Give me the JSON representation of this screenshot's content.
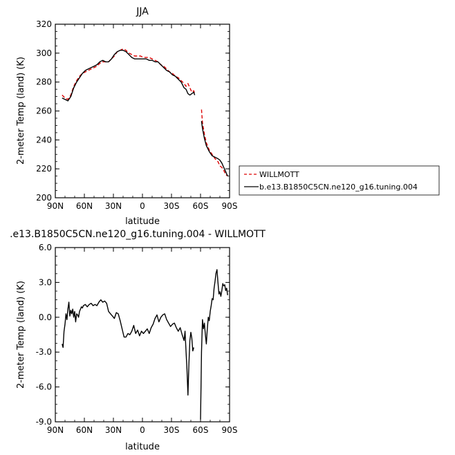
{
  "chart_data": [
    {
      "type": "line",
      "title": "JJA",
      "xlabel": "latitude",
      "ylabel": "2-meter Temp (land) (K)",
      "xlim": [
        90,
        -90
      ],
      "ylim": [
        200,
        320
      ],
      "xticks": [
        90,
        60,
        30,
        0,
        -30,
        -60,
        -90
      ],
      "xtick_labels": [
        "90N",
        "60N",
        "30N",
        "0",
        "30S",
        "60S",
        "90S"
      ],
      "yticks": [
        200,
        220,
        240,
        260,
        280,
        300,
        320
      ],
      "ytick_labels": [
        "200",
        "220",
        "240",
        "260",
        "280",
        "300",
        "320"
      ],
      "legend": "right",
      "series": [
        {
          "name": "WILLMOTT",
          "color": "#dd0000",
          "dash": "dashed",
          "segments": [
            [
              [
                83,
                271
              ],
              [
                80,
                269
              ],
              [
                77,
                268
              ],
              [
                74,
                271
              ],
              [
                71,
                277
              ],
              [
                68,
                281
              ],
              [
                65,
                284
              ],
              [
                62,
                286
              ],
              [
                59,
                287
              ],
              [
                56,
                288
              ],
              [
                53,
                289
              ],
              [
                50,
                290
              ],
              [
                47,
                291
              ],
              [
                44,
                293
              ],
              [
                41,
                294
              ],
              [
                38,
                294
              ],
              [
                35,
                294
              ],
              [
                32,
                296
              ],
              [
                29,
                298
              ],
              [
                26,
                301
              ],
              [
                23,
                302
              ],
              [
                20,
                303
              ],
              [
                17,
                302
              ],
              [
                14,
                300
              ],
              [
                11,
                299
              ],
              [
                8,
                298
              ],
              [
                5,
                298
              ],
              [
                2,
                298
              ],
              [
                -1,
                297
              ],
              [
                -4,
                297
              ],
              [
                -7,
                297
              ],
              [
                -10,
                296
              ],
              [
                -13,
                295
              ],
              [
                -16,
                294
              ],
              [
                -19,
                292
              ],
              [
                -22,
                291
              ],
              [
                -25,
                289
              ],
              [
                -28,
                287
              ],
              [
                -31,
                286
              ],
              [
                -34,
                284
              ],
              [
                -37,
                283
              ],
              [
                -40,
                281
              ],
              [
                -43,
                279
              ],
              [
                -45,
                277
              ],
              [
                -47,
                279
              ],
              [
                -49,
                276
              ],
              [
                -51,
                273
              ],
              [
                -53,
                274
              ],
              [
                -54,
                272
              ]
            ],
            [
              [
                -61,
                261
              ],
              [
                -62,
                252
              ],
              [
                -64,
                244
              ],
              [
                -66,
                238
              ],
              [
                -69,
                233
              ],
              [
                -72,
                230
              ],
              [
                -75,
                227
              ],
              [
                -78,
                225
              ],
              [
                -80,
                222
              ],
              [
                -82,
                221
              ],
              [
                -84,
                219
              ],
              [
                -86,
                216
              ],
              [
                -88,
                215
              ]
            ]
          ]
        },
        {
          "name": "b.e13.B1850C5CN.ne120_g16.tuning.004",
          "color": "#000000",
          "dash": "solid",
          "segments": [
            [
              [
                83,
                269
              ],
              [
                80,
                268
              ],
              [
                77,
                267
              ],
              [
                74,
                270
              ],
              [
                71,
                276
              ],
              [
                68,
                280
              ],
              [
                65,
                283
              ],
              [
                62,
                286
              ],
              [
                59,
                288
              ],
              [
                56,
                289
              ],
              [
                53,
                290
              ],
              [
                50,
                291
              ],
              [
                47,
                292
              ],
              [
                44,
                294
              ],
              [
                41,
                295
              ],
              [
                38,
                294
              ],
              [
                35,
                294
              ],
              [
                32,
                296
              ],
              [
                29,
                299
              ],
              [
                26,
                301
              ],
              [
                23,
                302
              ],
              [
                20,
                302
              ],
              [
                17,
                301
              ],
              [
                14,
                299
              ],
              [
                11,
                297
              ],
              [
                8,
                296
              ],
              [
                5,
                296
              ],
              [
                2,
                296
              ],
              [
                -1,
                296
              ],
              [
                -4,
                296
              ],
              [
                -7,
                295
              ],
              [
                -10,
                295
              ],
              [
                -13,
                294
              ],
              [
                -16,
                294
              ],
              [
                -19,
                292
              ],
              [
                -22,
                290
              ],
              [
                -25,
                288
              ],
              [
                -28,
                287
              ],
              [
                -31,
                285
              ],
              [
                -34,
                284
              ],
              [
                -37,
                282
              ],
              [
                -40,
                280
              ],
              [
                -43,
                276
              ],
              [
                -45,
                275
              ],
              [
                -47,
                272
              ],
              [
                -49,
                271
              ],
              [
                -51,
                272
              ],
              [
                -53,
                273
              ],
              [
                -54,
                271
              ]
            ],
            [
              [
                -61,
                253
              ],
              [
                -62,
                248
              ],
              [
                -64,
                241
              ],
              [
                -66,
                236
              ],
              [
                -69,
                232
              ],
              [
                -72,
                229
              ],
              [
                -75,
                228
              ],
              [
                -78,
                227
              ],
              [
                -80,
                226
              ],
              [
                -82,
                224
              ],
              [
                -84,
                221
              ],
              [
                -86,
                218
              ],
              [
                -88,
                215
              ]
            ]
          ]
        }
      ]
    },
    {
      "type": "line",
      "title": ".e13.B1850C5CN.ne120_g16.tuning.004 - WILLMOTT",
      "xlabel": "latitude",
      "ylabel": "2-meter Temp (land) (K)",
      "xlim": [
        90,
        -90
      ],
      "ylim": [
        -9,
        6
      ],
      "xticks": [
        90,
        60,
        30,
        0,
        -30,
        -60,
        -90
      ],
      "xtick_labels": [
        "90N",
        "60N",
        "30N",
        "0",
        "30S",
        "60S",
        "90S"
      ],
      "yticks": [
        -9,
        -6,
        -3,
        0,
        3,
        6
      ],
      "ytick_labels": [
        "-9.0",
        "-6.0",
        "-3.0",
        "0.0",
        "3.0",
        "6.0"
      ],
      "series": [
        {
          "color": "#000000",
          "dash": "solid",
          "segments": [
            [
              [
                83,
                -2.3
              ],
              [
                82,
                -2.6
              ],
              [
                81,
                -1.2
              ],
              [
                80,
                -0.6
              ],
              [
                79,
                0.3
              ],
              [
                78,
                -0.2
              ],
              [
                77,
                0.7
              ],
              [
                76,
                1.3
              ],
              [
                75,
                0.1
              ],
              [
                74,
                0.6
              ],
              [
                73,
                0.3
              ],
              [
                72,
                0.7
              ],
              [
                71,
                0.0
              ],
              [
                70,
                0.5
              ],
              [
                69,
                -0.4
              ],
              [
                68,
                0.3
              ],
              [
                67,
                0.2
              ],
              [
                66,
                0.0
              ],
              [
                65,
                0.5
              ],
              [
                64,
                0.7
              ],
              [
                63,
                0.9
              ],
              [
                62,
                0.8
              ],
              [
                61,
                1.0
              ],
              [
                59,
                1.1
              ],
              [
                57,
                0.9
              ],
              [
                55,
                1.1
              ],
              [
                53,
                1.2
              ],
              [
                51,
                1.0
              ],
              [
                49,
                1.1
              ],
              [
                47,
                1.0
              ],
              [
                45,
                1.3
              ],
              [
                43,
                1.5
              ],
              [
                41,
                1.3
              ],
              [
                39,
                1.4
              ],
              [
                37,
                1.2
              ],
              [
                35,
                0.5
              ],
              [
                33,
                0.3
              ],
              [
                31,
                0.1
              ],
              [
                29,
                -0.1
              ],
              [
                27,
                0.4
              ],
              [
                25,
                0.3
              ],
              [
                23,
                -0.3
              ],
              [
                21,
                -1.0
              ],
              [
                19,
                -1.7
              ],
              [
                17,
                -1.7
              ],
              [
                15,
                -1.4
              ],
              [
                13,
                -1.5
              ],
              [
                11,
                -1.2
              ],
              [
                9,
                -0.7
              ],
              [
                7,
                -1.4
              ],
              [
                5,
                -1.1
              ],
              [
                3,
                -1.6
              ],
              [
                1,
                -1.2
              ],
              [
                -1,
                -1.4
              ],
              [
                -3,
                -1.2
              ],
              [
                -5,
                -1.0
              ],
              [
                -7,
                -1.4
              ],
              [
                -9,
                -0.9
              ],
              [
                -11,
                -0.6
              ],
              [
                -13,
                -0.1
              ],
              [
                -15,
                0.2
              ],
              [
                -17,
                -0.4
              ],
              [
                -19,
                0.0
              ],
              [
                -21,
                0.2
              ],
              [
                -23,
                0.3
              ],
              [
                -25,
                -0.2
              ],
              [
                -27,
                -0.5
              ],
              [
                -29,
                -0.8
              ],
              [
                -31,
                -0.6
              ],
              [
                -33,
                -0.5
              ],
              [
                -35,
                -0.9
              ],
              [
                -37,
                -1.2
              ],
              [
                -39,
                -0.9
              ],
              [
                -41,
                -1.5
              ],
              [
                -43,
                -2.0
              ],
              [
                -44,
                -1.2
              ],
              [
                -45,
                -2.9
              ],
              [
                -46,
                -4.5
              ],
              [
                -47,
                -6.7
              ],
              [
                -48,
                -4.0
              ],
              [
                -49,
                -2.0
              ],
              [
                -50,
                -1.3
              ],
              [
                -51,
                -1.8
              ],
              [
                -52,
                -2.9
              ],
              [
                -53,
                -2.6
              ]
            ],
            [
              [
                -60,
                -8.8
              ],
              [
                -60.5,
                -6.0
              ],
              [
                -61,
                -3.0
              ],
              [
                -62,
                -0.2
              ],
              [
                -63,
                -1.0
              ],
              [
                -64,
                -0.5
              ],
              [
                -65,
                -1.5
              ],
              [
                -66,
                -2.3
              ],
              [
                -67,
                -1.0
              ],
              [
                -68,
                0.0
              ],
              [
                -69,
                -0.3
              ],
              [
                -70,
                0.5
              ],
              [
                -71,
                1.0
              ],
              [
                -72,
                1.6
              ],
              [
                -73,
                1.5
              ],
              [
                -74,
                2.5
              ],
              [
                -75,
                3.1
              ],
              [
                -76,
                3.8
              ],
              [
                -77,
                4.1
              ],
              [
                -78,
                3.0
              ],
              [
                -79,
                2.0
              ],
              [
                -80,
                2.2
              ],
              [
                -81,
                1.8
              ],
              [
                -82,
                2.3
              ],
              [
                -83,
                2.9
              ],
              [
                -84,
                2.7
              ],
              [
                -85,
                2.8
              ],
              [
                -86,
                2.3
              ],
              [
                -87,
                2.5
              ],
              [
                -88,
                1.9
              ]
            ]
          ]
        }
      ]
    }
  ]
}
